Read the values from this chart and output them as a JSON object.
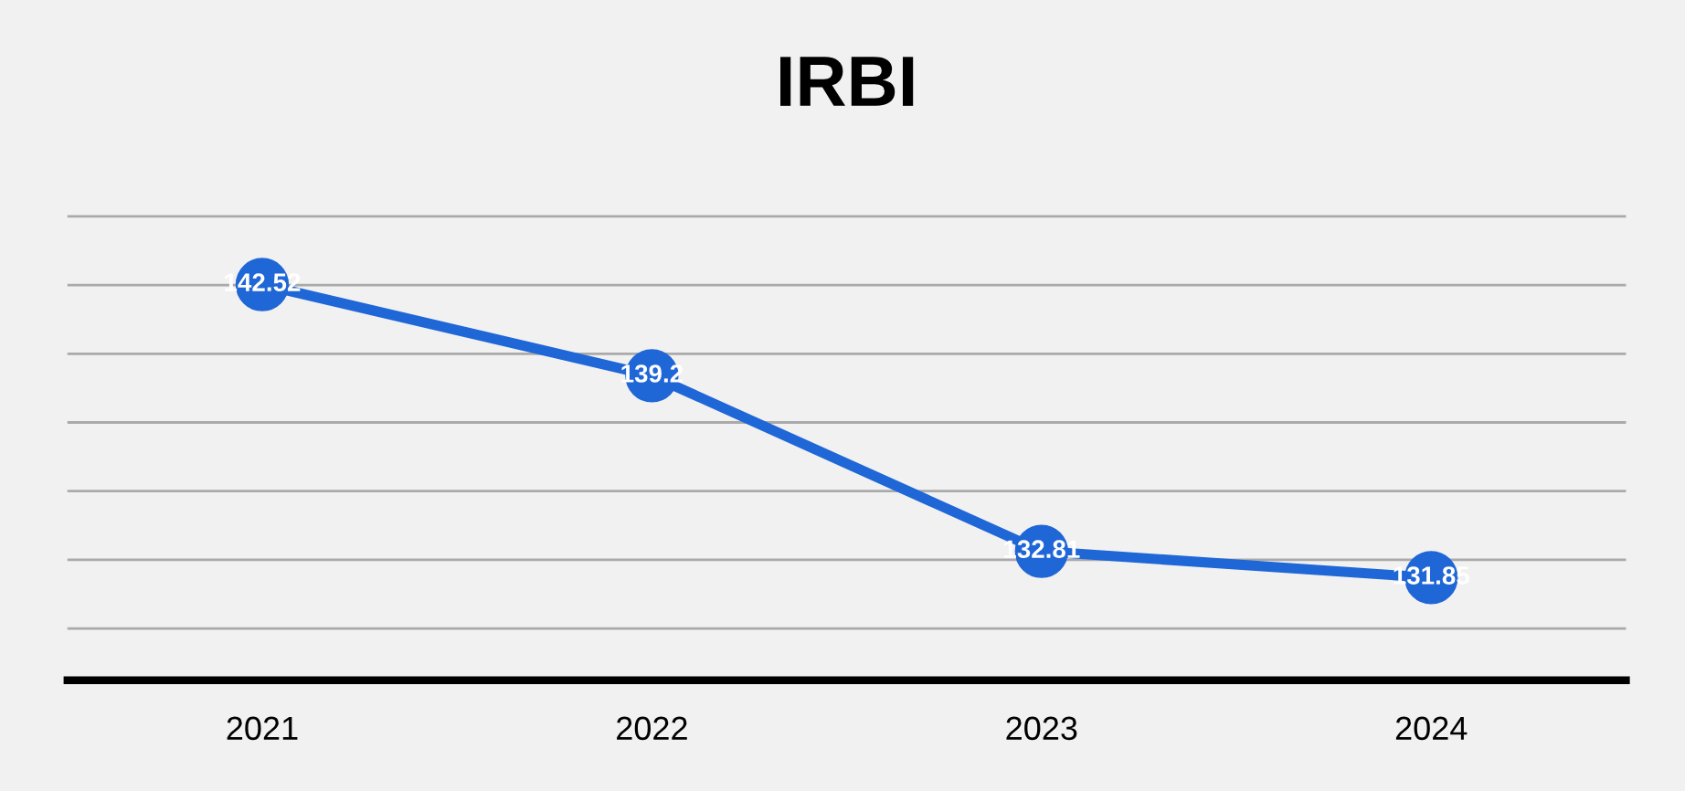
{
  "chart_data": {
    "type": "line",
    "title": "IRBI",
    "categories": [
      "2021",
      "2022",
      "2023",
      "2024"
    ],
    "series": [
      {
        "color": "#1f66d6",
        "values": [
          142.52,
          139.2,
          132.81,
          131.85
        ]
      }
    ],
    "data_labels": true,
    "marker": "circle",
    "line_style": "solid",
    "grid": "y",
    "legend": false,
    "tick_labels": "x"
  }
}
